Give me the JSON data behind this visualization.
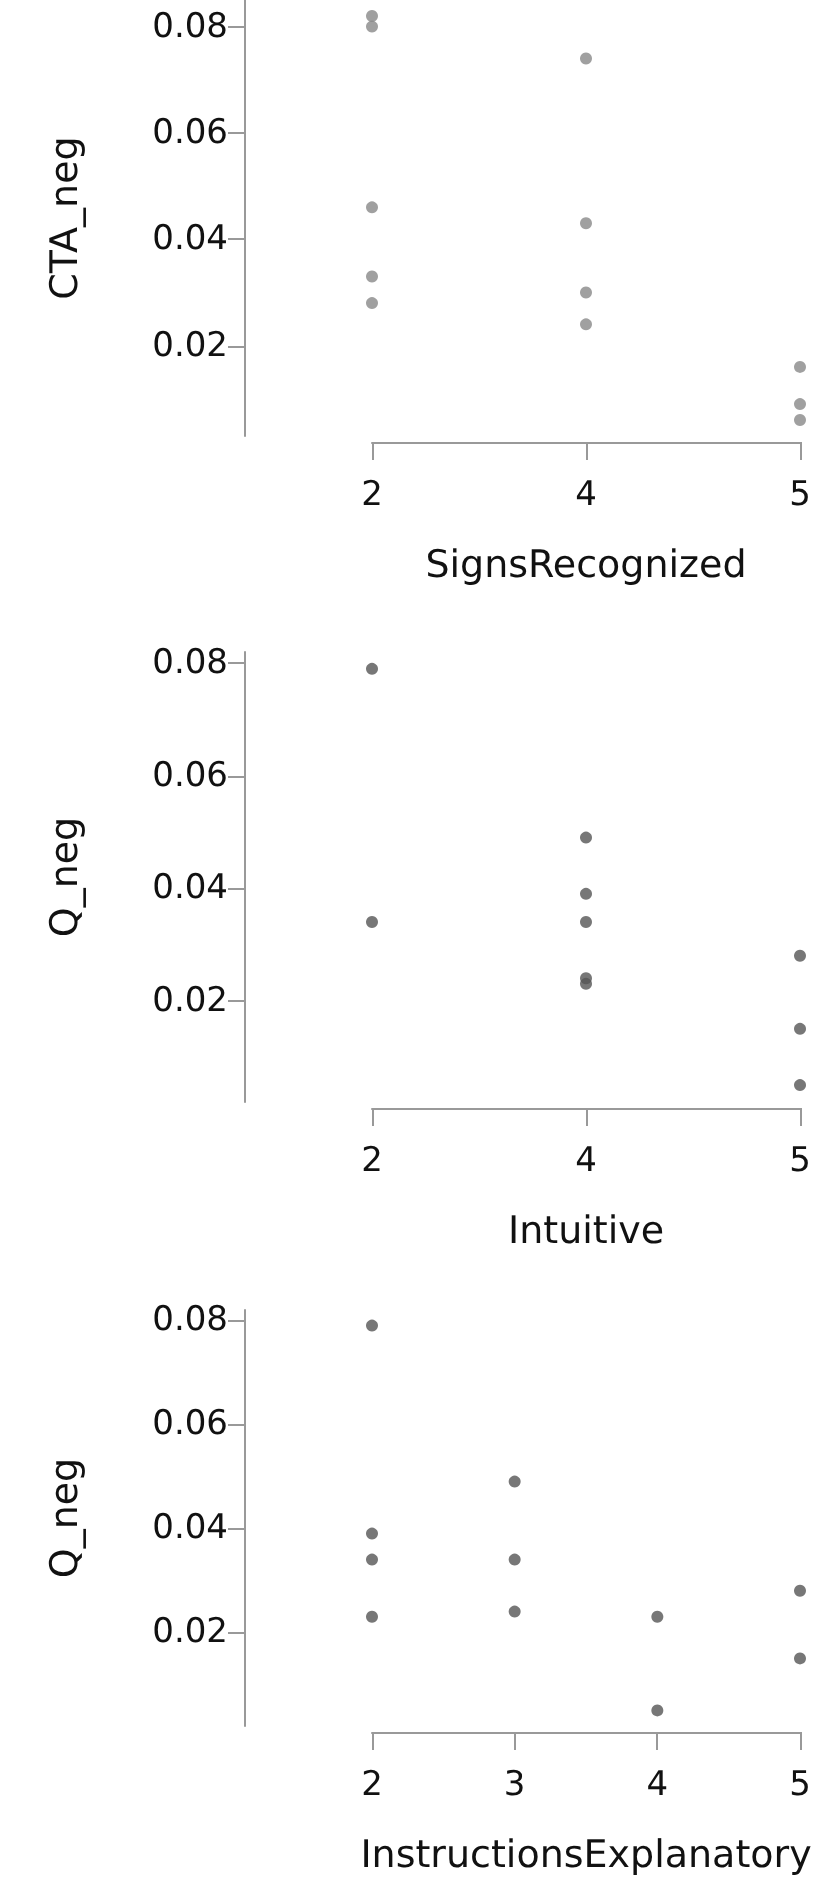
{
  "chart_data": [
    {
      "type": "scatter",
      "xlabel": "SignsRecognized",
      "ylabel": "CTA_neg",
      "categories": [
        "2",
        "4",
        "5"
      ],
      "ylim": [
        0.003,
        0.085
      ],
      "yticks": [
        0.02,
        0.04,
        0.06,
        0.08
      ],
      "grid": false,
      "marker": "circle",
      "series": [
        {
          "color": "#888888",
          "x": [
            "2",
            "2",
            "2",
            "2",
            "2",
            "4",
            "4",
            "4",
            "4",
            "5",
            "5",
            "5"
          ],
          "values": [
            0.082,
            0.08,
            0.046,
            0.033,
            0.028,
            0.074,
            0.043,
            0.03,
            0.024,
            0.016,
            0.009,
            0.006
          ]
        }
      ]
    },
    {
      "type": "scatter",
      "xlabel": "Intuitive",
      "ylabel": "Q_neg",
      "categories": [
        "2",
        "4",
        "5"
      ],
      "ylim": [
        0.002,
        0.082
      ],
      "yticks": [
        0.02,
        0.04,
        0.06,
        0.08
      ],
      "grid": false,
      "marker": "circle",
      "series": [
        {
          "color": "#555555",
          "x": [
            "2",
            "2",
            "4",
            "4",
            "4",
            "4",
            "4",
            "4",
            "5",
            "5",
            "5"
          ],
          "values": [
            0.079,
            0.034,
            0.049,
            0.039,
            0.034,
            0.023,
            null,
            0.024,
            0.028,
            0.015,
            0.005
          ]
        }
      ]
    },
    {
      "type": "scatter",
      "xlabel": "InstructionsExplanatory",
      "ylabel": "Q_neg",
      "categories": [
        "2",
        "3",
        "4",
        "5"
      ],
      "ylim": [
        0.002,
        0.082
      ],
      "yticks": [
        0.02,
        0.04,
        0.06,
        0.08
      ],
      "grid": false,
      "marker": "circle",
      "series": [
        {
          "color": "#555555",
          "x": [
            "2",
            "2",
            "2",
            "2",
            "3",
            "3",
            "3",
            "4",
            "4",
            "4",
            "5",
            "5"
          ],
          "values": [
            0.079,
            0.039,
            0.034,
            0.023,
            0.049,
            0.034,
            0.024,
            0.023,
            null,
            0.005,
            0.028,
            0.015
          ]
        }
      ]
    }
  ]
}
